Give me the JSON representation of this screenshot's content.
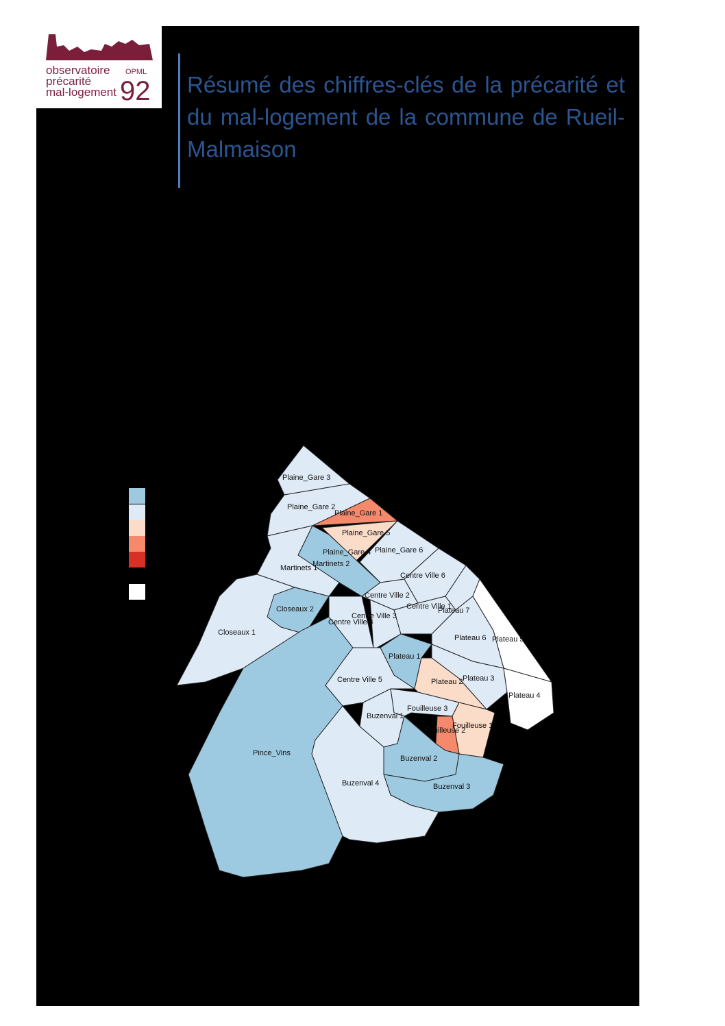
{
  "header": {
    "logo": {
      "lines": [
        "observatoire",
        "précarité",
        "mal-logement"
      ],
      "badge": "OPML",
      "number": "92"
    },
    "title": "Résumé des chiffres-clés de la précarité et du mal-logement de la commune de Rueil-Malmaison"
  },
  "map": {
    "districts": [
      "Plaine_Gare 3",
      "Plaine_Gare 2",
      "Plaine_Gare 1",
      "Plaine_Gare 5",
      "Plaine_Gare 4",
      "Martinets 2",
      "Plaine_Gare 6",
      "Martinets 1",
      "Closeaux 1",
      "Closeaux 2",
      "Pince_Vins",
      "Centre Ville 4",
      "Centre Ville 2",
      "Centre Ville 3",
      "Centre Ville 6",
      "Centre Ville 1",
      "Plateau 7",
      "Plateau 5",
      "Plateau 6",
      "Plateau 1",
      "Centre Ville 5",
      "Plateau 2",
      "Plateau 3",
      "Plateau 4",
      "Fouilleuse 3",
      "Fouilleuse 1",
      "Fouilleuse 2",
      "Buzenval 1",
      "Buzenval 2",
      "Buzenval 3",
      "Buzenval 4"
    ]
  }
}
